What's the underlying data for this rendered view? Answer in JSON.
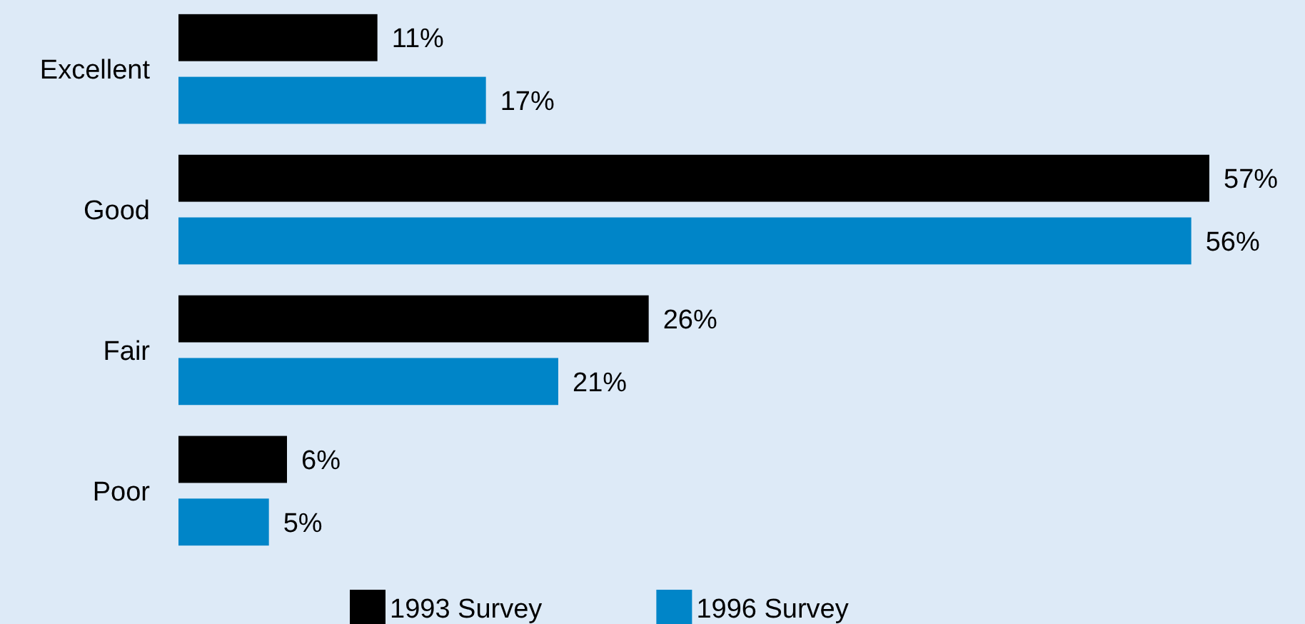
{
  "chart_data": {
    "type": "bar",
    "orientation": "horizontal",
    "categories": [
      "Excellent",
      "Good",
      "Fair",
      "Poor"
    ],
    "series": [
      {
        "name": "1993 Survey",
        "color": "#000000",
        "values": [
          11,
          57,
          26,
          6
        ],
        "value_labels": [
          "11%",
          "57%",
          "26%",
          "6%"
        ]
      },
      {
        "name": "1996 Survey",
        "color": "#0085c8",
        "values": [
          17,
          56,
          21,
          5
        ],
        "value_labels": [
          "17%",
          "56%",
          "21%",
          "5%"
        ]
      }
    ],
    "legend": "bottom"
  }
}
